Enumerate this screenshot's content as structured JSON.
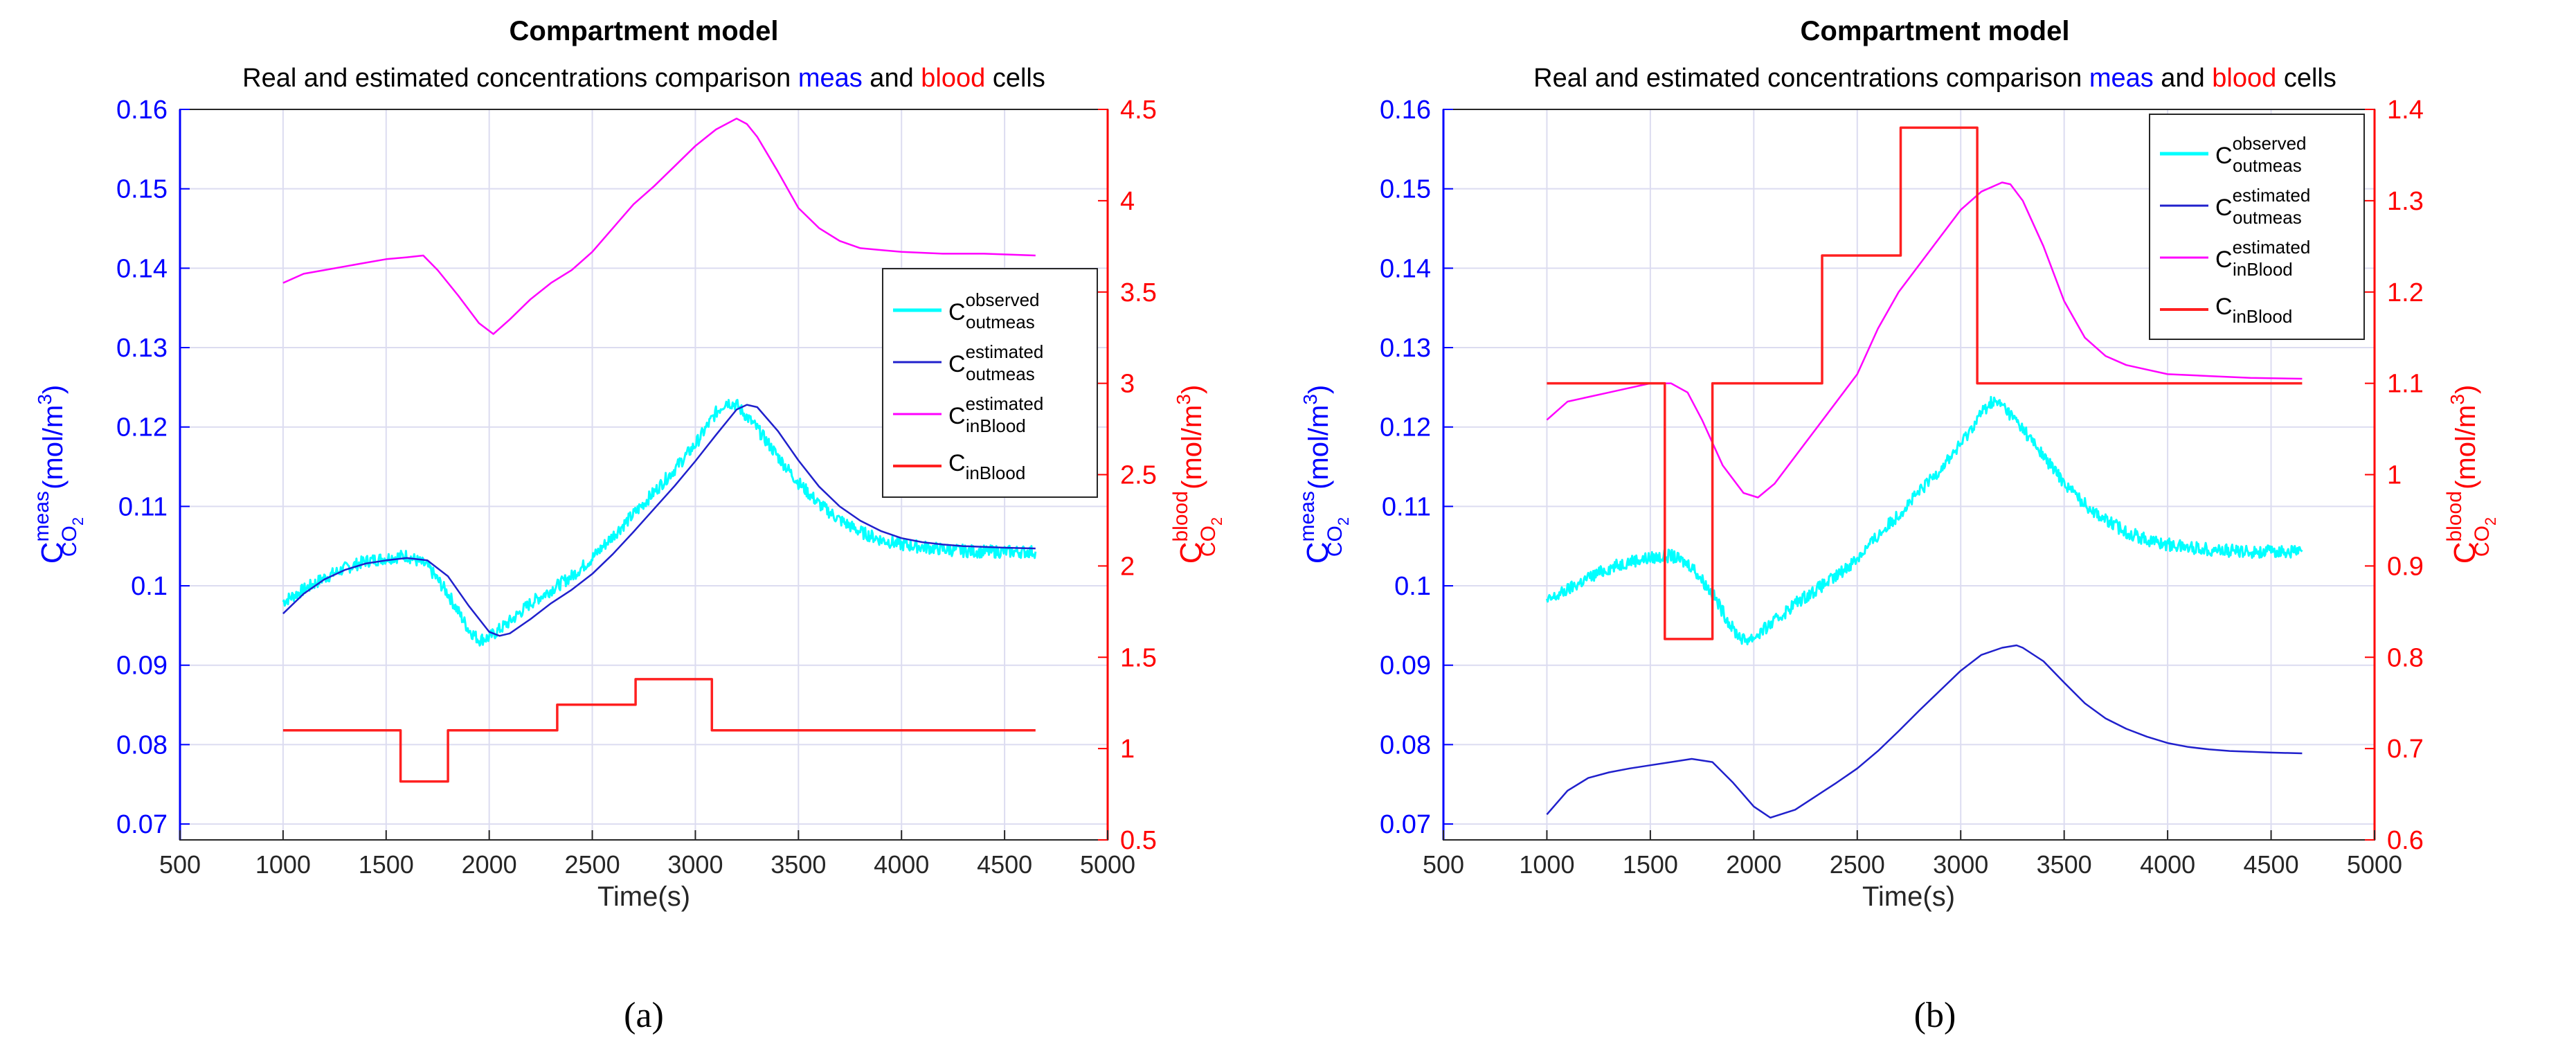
{
  "colors": {
    "left_axis": "#0000ff",
    "right_axis": "#ff0000",
    "observed": "#00ffff",
    "estimated_out": "#2020cc",
    "estimated_blood": "#ff00ff",
    "blood": "#ff2020",
    "grid": "#dcdcf0"
  },
  "chart_data": [
    {
      "panel": "a",
      "type": "line",
      "title": "Compartment model",
      "subtitle": {
        "prefix": "Real and estimated concentrations comparison ",
        "meas": "meas",
        "and": " and ",
        "blood": "blood",
        "suffix": " cells"
      },
      "xlabel": "Time(s)",
      "ylabel_left": {
        "main": "C",
        "sup": "meas",
        "sub": "CO",
        "sub2": "2",
        "unit": "(mol/m",
        "unit_sup": "3",
        "close": ")"
      },
      "ylabel_right": {
        "main": "C",
        "sup": "blood",
        "sub": "CO",
        "sub2": "2",
        "unit": "(mol/m",
        "unit_sup": "3",
        "close": ")"
      },
      "caption": "(a)",
      "xlim": [
        500,
        5000
      ],
      "xticks": [
        500,
        1000,
        1500,
        2000,
        2500,
        3000,
        3500,
        4000,
        4500,
        5000
      ],
      "ylim_left": [
        0.068,
        0.16
      ],
      "yticks_left": [
        0.07,
        0.08,
        0.09,
        0.1,
        0.11,
        0.12,
        0.13,
        0.14,
        0.15,
        0.16
      ],
      "ylim_right": [
        0.5,
        4.5
      ],
      "yticks_right": [
        0.5,
        1,
        1.5,
        2,
        2.5,
        3,
        3.5,
        4,
        4.5
      ],
      "grid": true,
      "legend": {
        "placement": "right-middle",
        "entries": [
          {
            "base": "C",
            "sup": "observed",
            "sub": "outmeas",
            "color": "#00ffff"
          },
          {
            "base": "C",
            "sup": "estimated",
            "sub": "outmeas",
            "color": "#2020cc"
          },
          {
            "base": "C",
            "sup": "estimated",
            "sub": "inBlood",
            "color": "#ff00ff"
          },
          {
            "base": "C",
            "sup": "",
            "sub": "inBlood",
            "color": "#ff2020"
          }
        ]
      },
      "series": [
        {
          "name": "C_observed_outmeas",
          "axis": "left",
          "noisy": true,
          "color": "#00ffff",
          "x": [
            1000,
            1100,
            1200,
            1300,
            1400,
            1500,
            1600,
            1700,
            1800,
            1900,
            1950,
            2000,
            2100,
            2200,
            2300,
            2400,
            2500,
            2600,
            2700,
            2800,
            2900,
            3000,
            3100,
            3150,
            3200,
            3300,
            3400,
            3500,
            3600,
            3700,
            3800,
            3900,
            4000,
            4100,
            4200,
            4300,
            4400,
            4500,
            4650
          ],
          "y": [
            0.098,
            0.0995,
            0.101,
            0.1022,
            0.1031,
            0.1035,
            0.1038,
            0.1025,
            0.099,
            0.0945,
            0.0932,
            0.0935,
            0.0955,
            0.0978,
            0.0995,
            0.1012,
            0.1035,
            0.1063,
            0.109,
            0.1118,
            0.1147,
            0.1178,
            0.1218,
            0.1232,
            0.1228,
            0.1198,
            0.1163,
            0.113,
            0.1103,
            0.1083,
            0.1068,
            0.1058,
            0.1052,
            0.1049,
            0.1046,
            0.1044,
            0.1043,
            0.1043,
            0.1043
          ]
        },
        {
          "name": "C_estimated_outmeas",
          "axis": "left",
          "noisy": false,
          "color": "#2020cc",
          "x": [
            1000,
            1100,
            1200,
            1300,
            1400,
            1500,
            1600,
            1700,
            1800,
            1900,
            2000,
            2050,
            2100,
            2200,
            2300,
            2400,
            2500,
            2600,
            2700,
            2800,
            2900,
            3000,
            3100,
            3200,
            3250,
            3300,
            3400,
            3500,
            3600,
            3700,
            3800,
            3900,
            4000,
            4100,
            4200,
            4300,
            4400,
            4500,
            4650
          ],
          "y": [
            0.0965,
            0.099,
            0.1008,
            0.102,
            0.1028,
            0.1032,
            0.1035,
            0.1032,
            0.1012,
            0.0975,
            0.0942,
            0.0937,
            0.094,
            0.0958,
            0.0978,
            0.0995,
            0.1015,
            0.104,
            0.1068,
            0.1097,
            0.1126,
            0.1157,
            0.119,
            0.1222,
            0.1228,
            0.1225,
            0.1195,
            0.1158,
            0.1125,
            0.11,
            0.1082,
            0.1069,
            0.106,
            0.1055,
            0.1052,
            0.105,
            0.1049,
            0.1048,
            0.1047
          ]
        },
        {
          "name": "C_estimated_inBlood",
          "axis": "right",
          "noisy": false,
          "color": "#ff00ff",
          "x": [
            1000,
            1100,
            1200,
            1300,
            1400,
            1500,
            1600,
            1680,
            1750,
            1850,
            1950,
            2020,
            2100,
            2200,
            2300,
            2400,
            2500,
            2600,
            2700,
            2800,
            2900,
            3000,
            3100,
            3200,
            3250,
            3300,
            3400,
            3500,
            3600,
            3700,
            3800,
            3900,
            4000,
            4200,
            4400,
            4650
          ],
          "y": [
            3.55,
            3.6,
            3.62,
            3.64,
            3.66,
            3.68,
            3.69,
            3.7,
            3.62,
            3.48,
            3.33,
            3.27,
            3.35,
            3.46,
            3.55,
            3.62,
            3.72,
            3.85,
            3.98,
            4.08,
            4.19,
            4.3,
            4.39,
            4.45,
            4.42,
            4.35,
            4.16,
            3.96,
            3.85,
            3.78,
            3.74,
            3.73,
            3.72,
            3.71,
            3.71,
            3.7
          ]
        },
        {
          "name": "C_inBlood",
          "axis": "right",
          "noisy": false,
          "color": "#ff2020",
          "x": [
            1000,
            1570,
            1570,
            1800,
            1800,
            2330,
            2330,
            2710,
            2710,
            3080,
            3080,
            4650
          ],
          "y": [
            1.1,
            1.1,
            0.82,
            0.82,
            1.1,
            1.1,
            1.24,
            1.24,
            1.38,
            1.38,
            1.1,
            1.1
          ]
        }
      ]
    },
    {
      "panel": "b",
      "type": "line",
      "title": "Compartment model",
      "subtitle": {
        "prefix": "Real and estimated concentrations comparison ",
        "meas": "meas",
        "and": " and ",
        "blood": "blood",
        "suffix": " cells"
      },
      "xlabel": "Time(s)",
      "ylabel_left": {
        "main": "C",
        "sup": "meas",
        "sub": "CO",
        "sub2": "2",
        "unit": "(mol/m",
        "unit_sup": "3",
        "close": ")"
      },
      "ylabel_right": {
        "main": "C",
        "sup": "blood",
        "sub": "CO",
        "sub2": "2",
        "unit": "(mol/m",
        "unit_sup": "3",
        "close": ")"
      },
      "caption": "(b)",
      "xlim": [
        500,
        5000
      ],
      "xticks": [
        500,
        1000,
        1500,
        2000,
        2500,
        3000,
        3500,
        4000,
        4500,
        5000
      ],
      "ylim_left": [
        0.068,
        0.16
      ],
      "yticks_left": [
        0.07,
        0.08,
        0.09,
        0.1,
        0.11,
        0.12,
        0.13,
        0.14,
        0.15,
        0.16
      ],
      "ylim_right": [
        0.6,
        1.4
      ],
      "yticks_right": [
        0.6,
        0.7,
        0.8,
        0.9,
        1,
        1.1,
        1.2,
        1.3,
        1.4
      ],
      "grid": true,
      "legend": {
        "placement": "top-right",
        "entries": [
          {
            "base": "C",
            "sup": "observed",
            "sub": "outmeas",
            "color": "#00ffff"
          },
          {
            "base": "C",
            "sup": "estimated",
            "sub": "outmeas",
            "color": "#2020cc"
          },
          {
            "base": "C",
            "sup": "estimated",
            "sub": "inBlood",
            "color": "#ff00ff"
          },
          {
            "base": "C",
            "sup": "",
            "sub": "inBlood",
            "color": "#ff2020"
          }
        ]
      },
      "series": [
        {
          "name": "C_observed_outmeas",
          "axis": "left",
          "noisy": true,
          "color": "#00ffff",
          "x": [
            1000,
            1100,
            1200,
            1300,
            1400,
            1500,
            1600,
            1700,
            1800,
            1900,
            1950,
            2000,
            2100,
            2200,
            2300,
            2400,
            2500,
            2600,
            2700,
            2800,
            2900,
            3000,
            3100,
            3150,
            3200,
            3300,
            3400,
            3500,
            3600,
            3700,
            3800,
            3900,
            4000,
            4100,
            4200,
            4300,
            4400,
            4500,
            4650
          ],
          "y": [
            0.098,
            0.0995,
            0.101,
            0.1022,
            0.1031,
            0.1035,
            0.1038,
            0.1025,
            0.099,
            0.0945,
            0.0932,
            0.0935,
            0.0955,
            0.0978,
            0.0995,
            0.1012,
            0.1035,
            0.1063,
            0.109,
            0.1118,
            0.1147,
            0.1178,
            0.1218,
            0.1232,
            0.1228,
            0.1198,
            0.1163,
            0.113,
            0.1103,
            0.1083,
            0.1068,
            0.1058,
            0.1052,
            0.1049,
            0.1046,
            0.1044,
            0.1043,
            0.1043,
            0.1043
          ]
        },
        {
          "name": "C_estimated_outmeas",
          "axis": "left",
          "noisy": false,
          "color": "#2020cc",
          "x": [
            1000,
            1100,
            1200,
            1300,
            1400,
            1500,
            1600,
            1700,
            1800,
            1900,
            2000,
            2080,
            2200,
            2300,
            2400,
            2500,
            2600,
            2700,
            2800,
            2900,
            3000,
            3100,
            3200,
            3270,
            3300,
            3400,
            3500,
            3600,
            3700,
            3800,
            3900,
            4000,
            4100,
            4200,
            4300,
            4400,
            4500,
            4650
          ],
          "y": [
            0.0712,
            0.0742,
            0.0758,
            0.0765,
            0.077,
            0.0774,
            0.0778,
            0.0782,
            0.0778,
            0.0752,
            0.0722,
            0.0708,
            0.0718,
            0.0735,
            0.0752,
            0.077,
            0.0792,
            0.0817,
            0.0843,
            0.0868,
            0.0893,
            0.0913,
            0.0922,
            0.0925,
            0.0922,
            0.0905,
            0.0878,
            0.0852,
            0.0833,
            0.082,
            0.081,
            0.0802,
            0.0797,
            0.0794,
            0.0792,
            0.0791,
            0.079,
            0.0789
          ]
        },
        {
          "name": "C_estimated_inBlood",
          "axis": "right",
          "noisy": false,
          "color": "#ff00ff",
          "x": [
            1000,
            1100,
            1200,
            1300,
            1400,
            1500,
            1600,
            1680,
            1750,
            1850,
            1950,
            2020,
            2100,
            2200,
            2300,
            2400,
            2500,
            2600,
            2700,
            2800,
            2900,
            3000,
            3100,
            3200,
            3240,
            3300,
            3400,
            3500,
            3600,
            3700,
            3800,
            3900,
            4000,
            4200,
            4400,
            4650
          ],
          "y": [
            1.06,
            1.08,
            1.085,
            1.09,
            1.095,
            1.1,
            1.1,
            1.09,
            1.06,
            1.01,
            0.98,
            0.975,
            0.99,
            1.02,
            1.05,
            1.08,
            1.11,
            1.16,
            1.2,
            1.23,
            1.26,
            1.29,
            1.31,
            1.32,
            1.318,
            1.3,
            1.25,
            1.19,
            1.15,
            1.13,
            1.12,
            1.115,
            1.11,
            1.108,
            1.106,
            1.105
          ]
        },
        {
          "name": "C_inBlood",
          "axis": "right",
          "noisy": false,
          "color": "#ff2020",
          "x": [
            1000,
            1570,
            1570,
            1800,
            1800,
            2330,
            2330,
            2710,
            2710,
            3080,
            3080,
            4650
          ],
          "y": [
            1.1,
            1.1,
            0.82,
            0.82,
            1.1,
            1.1,
            1.24,
            1.24,
            1.38,
            1.38,
            1.1,
            1.1
          ]
        }
      ]
    }
  ]
}
